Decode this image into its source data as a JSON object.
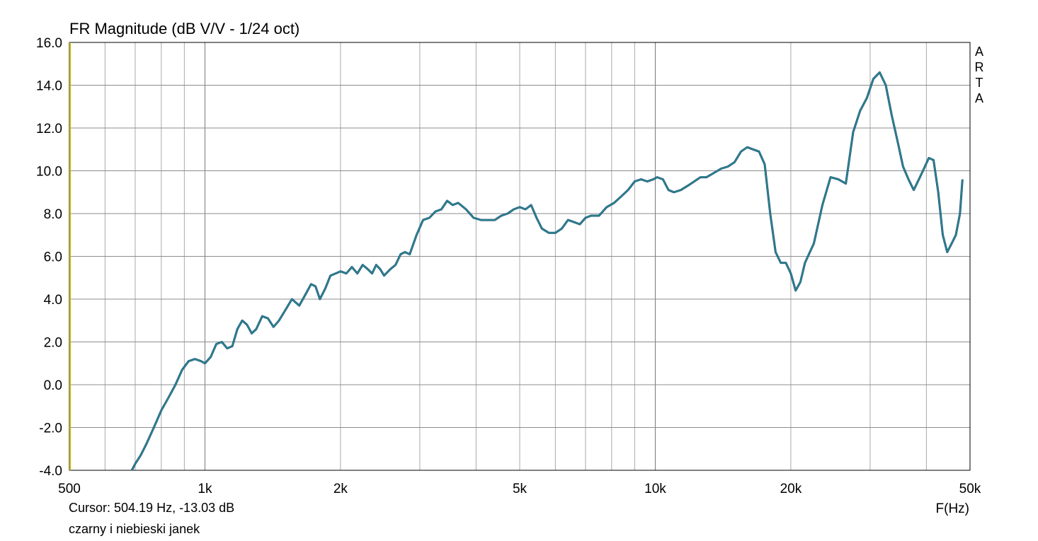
{
  "title": "FR Magnitude (dB V/V - 1/24 oct)",
  "cursor_readout": "Cursor: 504.19 Hz, -13.03 dB",
  "note": "czarny i niebieski janek",
  "watermark": [
    "A",
    "R",
    "T",
    "A"
  ],
  "colors": {
    "trace": "#2e8b82",
    "trace_shadow": "#1a4f8a",
    "grid": "#a9a9a9",
    "frame": "#000000",
    "marker": "#c8b400"
  },
  "chart_data": {
    "type": "line",
    "title": "FR Magnitude (dB V/V - 1/24 oct)",
    "xlabel": "F(Hz)",
    "ylabel": "",
    "x_scale": "log",
    "xlim": [
      500,
      50000
    ],
    "ylim": [
      -4,
      16
    ],
    "grid": true,
    "x_ticks": [
      {
        "value": 500,
        "label": "500"
      },
      {
        "value": 1000,
        "label": "1k"
      },
      {
        "value": 2000,
        "label": "2k"
      },
      {
        "value": 5000,
        "label": "5k"
      },
      {
        "value": 10000,
        "label": "10k"
      },
      {
        "value": 20000,
        "label": "20k"
      },
      {
        "value": 50000,
        "label": "50k"
      }
    ],
    "y_ticks": [
      {
        "value": 16,
        "label": "16.0"
      },
      {
        "value": 14,
        "label": "14.0"
      },
      {
        "value": 12,
        "label": "12.0"
      },
      {
        "value": 10,
        "label": "10.0"
      },
      {
        "value": 8,
        "label": "8.0"
      },
      {
        "value": 6,
        "label": "6.0"
      },
      {
        "value": 4,
        "label": "4.0"
      },
      {
        "value": 2,
        "label": "2.0"
      },
      {
        "value": 0,
        "label": "0.0"
      },
      {
        "value": -2,
        "label": "-2.0"
      },
      {
        "value": -4,
        "label": "-4.0"
      }
    ],
    "series": [
      {
        "x": [
          688,
          700,
          720,
          740,
          770,
          800,
          830,
          860,
          890,
          920,
          950,
          980,
          1000,
          1030,
          1060,
          1090,
          1120,
          1150,
          1180,
          1210,
          1240,
          1270,
          1300,
          1340,
          1380,
          1420,
          1460,
          1500,
          1560,
          1620,
          1680,
          1720,
          1760,
          1800,
          1850,
          1900,
          1950,
          2000,
          2060,
          2120,
          2180,
          2240,
          2300,
          2350,
          2400,
          2450,
          2500,
          2580,
          2650,
          2720,
          2780,
          2850,
          2950,
          3050,
          3150,
          3250,
          3350,
          3450,
          3550,
          3650,
          3800,
          3950,
          4100,
          4250,
          4400,
          4550,
          4700,
          4850,
          5000,
          5150,
          5300,
          5450,
          5600,
          5800,
          6000,
          6200,
          6400,
          6600,
          6800,
          7000,
          7200,
          7500,
          7800,
          8100,
          8400,
          8700,
          9000,
          9300,
          9600,
          9900,
          10100,
          10400,
          10700,
          11000,
          11400,
          11800,
          12200,
          12600,
          13000,
          13500,
          14000,
          14500,
          15000,
          15500,
          16000,
          16500,
          17000,
          17500,
          18000,
          18500,
          19000,
          19500,
          20000,
          20500,
          21000,
          21500,
          22500,
          23500,
          24500,
          25500,
          26500,
          27500,
          28500,
          29500,
          30500,
          31500,
          32500,
          33500,
          34500,
          35500,
          36500,
          37500,
          38500,
          39500,
          40500,
          41500,
          42500,
          43500,
          44500,
          45500,
          46500,
          47500,
          48100
        ],
        "y": [
          -4.0,
          -3.7,
          -3.3,
          -2.8,
          -2.0,
          -1.2,
          -0.6,
          0.0,
          0.7,
          1.1,
          1.2,
          1.1,
          1.0,
          1.3,
          1.9,
          2.0,
          1.7,
          1.8,
          2.6,
          3.0,
          2.8,
          2.4,
          2.6,
          3.2,
          3.1,
          2.7,
          3.0,
          3.4,
          4.0,
          3.7,
          4.3,
          4.7,
          4.6,
          4.0,
          4.5,
          5.1,
          5.2,
          5.3,
          5.2,
          5.5,
          5.2,
          5.6,
          5.4,
          5.2,
          5.6,
          5.4,
          5.1,
          5.4,
          5.6,
          6.1,
          6.2,
          6.1,
          7.0,
          7.7,
          7.8,
          8.1,
          8.2,
          8.6,
          8.4,
          8.5,
          8.2,
          7.8,
          7.7,
          7.7,
          7.7,
          7.9,
          8.0,
          8.2,
          8.3,
          8.2,
          8.4,
          7.8,
          7.3,
          7.1,
          7.1,
          7.3,
          7.7,
          7.6,
          7.5,
          7.8,
          7.9,
          7.9,
          8.3,
          8.5,
          8.8,
          9.1,
          9.5,
          9.6,
          9.5,
          9.6,
          9.7,
          9.6,
          9.1,
          9.0,
          9.1,
          9.3,
          9.5,
          9.7,
          9.7,
          9.9,
          10.1,
          10.2,
          10.4,
          10.9,
          11.1,
          11.0,
          10.9,
          10.3,
          8.0,
          6.2,
          5.7,
          5.7,
          5.2,
          4.4,
          4.8,
          5.7,
          6.6,
          8.4,
          9.7,
          9.6,
          9.4,
          11.8,
          12.8,
          13.4,
          14.3,
          14.6,
          14.0,
          12.6,
          11.4,
          10.2,
          9.6,
          9.1,
          9.6,
          10.1,
          10.6,
          10.5,
          9.0,
          7.0,
          6.2,
          6.6,
          7.0,
          8.0,
          9.6
        ]
      }
    ]
  }
}
